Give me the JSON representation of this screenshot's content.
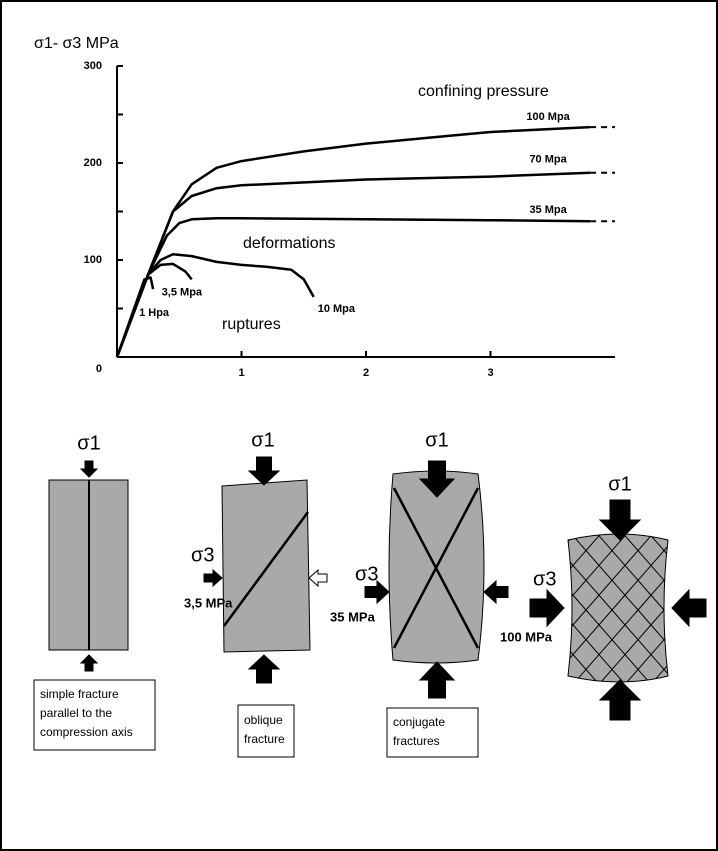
{
  "chart_data": {
    "type": "line",
    "y_label": "σ1- σ3 MPa",
    "xlim": [
      0,
      4
    ],
    "ylim": [
      0,
      300
    ],
    "xticks": [
      1,
      2,
      3
    ],
    "yticks": [
      0,
      100,
      200,
      300
    ],
    "yminorticks": [
      50,
      150,
      250
    ],
    "extend_dashed": true,
    "annotations": [
      "confining pressure",
      "deformations",
      "ruptures"
    ],
    "series": [
      {
        "name": "100 Mpa",
        "color": "#000000",
        "x": [
          0,
          0.25,
          0.45,
          0.6,
          0.8,
          1,
          1.5,
          2,
          2.5,
          3,
          3.8
        ],
        "values": [
          0,
          85,
          150,
          178,
          195,
          202,
          212,
          220,
          226,
          232,
          237
        ],
        "extend": true
      },
      {
        "name": "70 Mpa",
        "color": "#000000",
        "x": [
          0,
          0.25,
          0.45,
          0.6,
          0.8,
          1,
          2,
          3,
          3.8
        ],
        "values": [
          0,
          85,
          150,
          166,
          174,
          177,
          183,
          186,
          190
        ],
        "extend": true
      },
      {
        "name": "35 Mpa",
        "color": "#000000",
        "x": [
          0,
          0.25,
          0.4,
          0.5,
          0.6,
          0.8,
          1,
          2,
          3,
          3.8
        ],
        "values": [
          0,
          85,
          125,
          138,
          142,
          143,
          143,
          142,
          141,
          140
        ],
        "extend": true
      },
      {
        "name": "10 Mpa",
        "color": "#000000",
        "x": [
          0,
          0.25,
          0.35,
          0.45,
          0.6,
          0.8,
          1,
          1.2,
          1.4,
          1.5,
          1.58
        ],
        "values": [
          0,
          85,
          100,
          106,
          104,
          98,
          95,
          93,
          90,
          80,
          62
        ],
        "extend": false
      },
      {
        "name": "3,5 Mpa",
        "color": "#000000",
        "x": [
          0,
          0.25,
          0.35,
          0.45,
          0.55,
          0.6
        ],
        "values": [
          0,
          85,
          95,
          96,
          88,
          80
        ],
        "extend": false
      },
      {
        "name": "1 Hpa",
        "color": "#000000",
        "x": [
          0,
          0.22,
          0.27,
          0.29
        ],
        "values": [
          0,
          80,
          82,
          70
        ],
        "extend": false
      }
    ]
  },
  "diagrams": [
    {
      "sigma1": "σ1",
      "caption": [
        "simple fracture",
        "parallel to the",
        "compression axis"
      ]
    },
    {
      "sigma1": "σ1",
      "sigma3": "σ3",
      "pressure": "3,5 MPa",
      "caption": [
        "oblique",
        "fracture"
      ]
    },
    {
      "sigma1": "σ1",
      "sigma3": "σ3",
      "pressure": "35 MPa",
      "caption": [
        "conjugate",
        "fractures"
      ]
    },
    {
      "sigma1": "σ1",
      "sigma3": "σ3",
      "pressure": "100 MPa"
    }
  ]
}
